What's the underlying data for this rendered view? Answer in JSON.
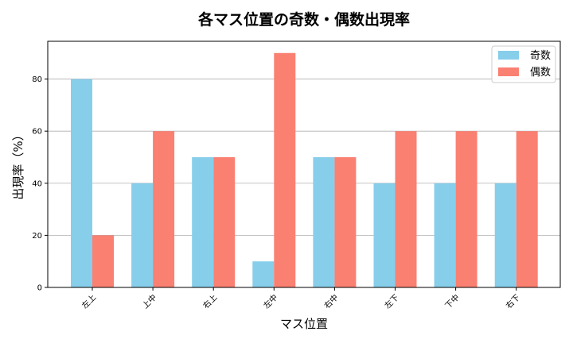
{
  "chart_data": {
    "type": "bar",
    "title": "各マス位置の奇数・偶数出現率",
    "xlabel": "マス位置",
    "ylabel": "出現率（%）",
    "categories": [
      "左上",
      "上中",
      "右上",
      "左中",
      "右中",
      "左下",
      "下中",
      "右下"
    ],
    "series": [
      {
        "name": "奇数",
        "color": "#87CEEB",
        "values": [
          80,
          40,
          50,
          10,
          50,
          40,
          40,
          40
        ]
      },
      {
        "name": "偶数",
        "color": "#FA8072",
        "values": [
          20,
          60,
          50,
          90,
          50,
          60,
          60,
          60
        ]
      }
    ],
    "ylim": [
      0,
      94.5
    ],
    "yticks": [
      0,
      20,
      40,
      60,
      80
    ],
    "grid": "y",
    "legend": "top-right"
  }
}
